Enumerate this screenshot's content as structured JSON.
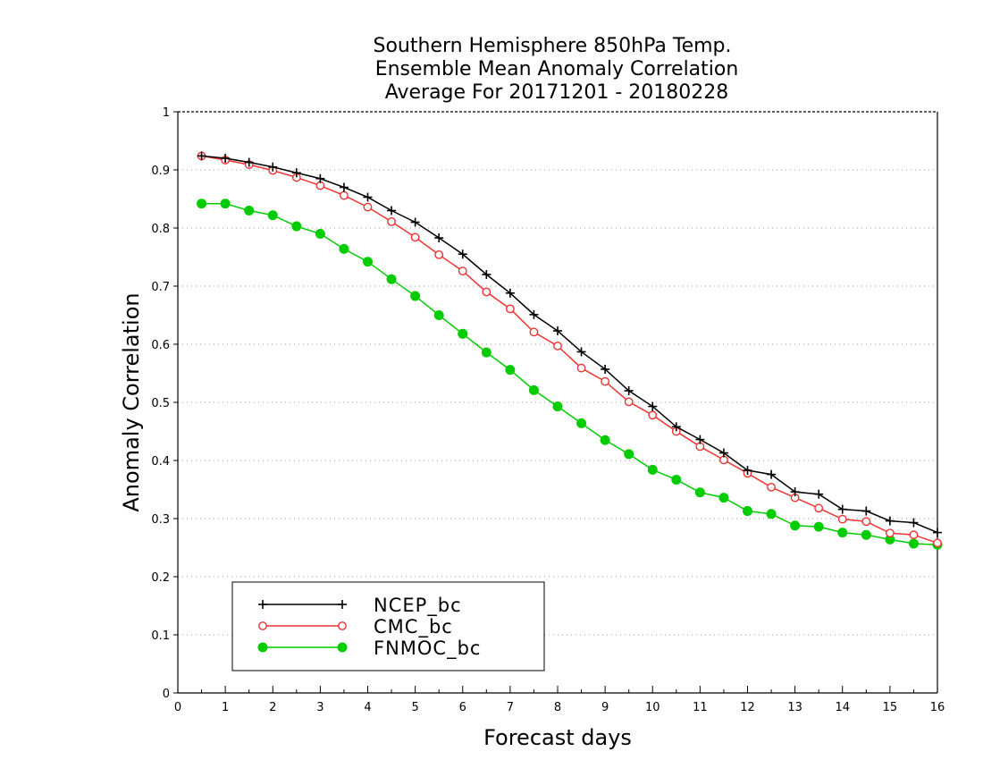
{
  "chart_data": {
    "type": "line",
    "title_lines": [
      "Southern Hemisphere 850hPa Temp.",
      "Ensemble Mean Anomaly Correlation",
      "Average For 20171201 - 20180228"
    ],
    "xlabel": "Forecast days",
    "ylabel": "Anomaly Correlation",
    "xlim": [
      0,
      16
    ],
    "ylim": [
      0,
      1
    ],
    "x_ticks": [
      "0",
      "1",
      "2",
      "3",
      "4",
      "5",
      "6",
      "7",
      "8",
      "9",
      "10",
      "11",
      "12",
      "13",
      "14",
      "15",
      "16"
    ],
    "y_ticks": [
      "0",
      "0.1",
      "0.2",
      "0.3",
      "0.4",
      "0.5",
      "0.6",
      "0.7",
      "0.8",
      "0.9",
      "1"
    ],
    "grid": "horizontal dotted",
    "legend_position": "bottom-left",
    "x": [
      0.5,
      1,
      1.5,
      2,
      2.5,
      3,
      3.5,
      4,
      4.5,
      5,
      5.5,
      6,
      6.5,
      7,
      7.5,
      8,
      8.5,
      9,
      9.5,
      10,
      10.5,
      11,
      11.5,
      12,
      12.5,
      13,
      13.5,
      14,
      14.5,
      15,
      15.5,
      16
    ],
    "series": [
      {
        "name": "NCEP_bc",
        "color": "#000000",
        "marker": "plus",
        "values": [
          0.924,
          0.92,
          0.913,
          0.905,
          0.895,
          0.885,
          0.87,
          0.853,
          0.83,
          0.81,
          0.783,
          0.755,
          0.72,
          0.688,
          0.651,
          0.623,
          0.587,
          0.557,
          0.52,
          0.493,
          0.458,
          0.436,
          0.413,
          0.383,
          0.376,
          0.346,
          0.342,
          0.316,
          0.313,
          0.296,
          0.293,
          0.276
        ]
      },
      {
        "name": "CMC_bc",
        "color": "#ee3333",
        "marker": "open-circle",
        "values": [
          0.924,
          0.917,
          0.909,
          0.899,
          0.887,
          0.873,
          0.856,
          0.836,
          0.811,
          0.784,
          0.754,
          0.726,
          0.69,
          0.661,
          0.621,
          0.597,
          0.559,
          0.536,
          0.501,
          0.478,
          0.45,
          0.424,
          0.401,
          0.378,
          0.354,
          0.336,
          0.318,
          0.299,
          0.295,
          0.275,
          0.272,
          0.258
        ]
      },
      {
        "name": "FNMOC_bc",
        "color": "#00cc00",
        "marker": "filled-circle",
        "values": [
          0.842,
          0.842,
          0.83,
          0.822,
          0.803,
          0.79,
          0.764,
          0.742,
          0.712,
          0.683,
          0.65,
          0.618,
          0.586,
          0.556,
          0.521,
          0.493,
          0.464,
          0.435,
          0.411,
          0.384,
          0.367,
          0.345,
          0.336,
          0.313,
          0.308,
          0.288,
          0.286,
          0.276,
          0.272,
          0.264,
          0.257,
          0.255
        ]
      }
    ]
  }
}
